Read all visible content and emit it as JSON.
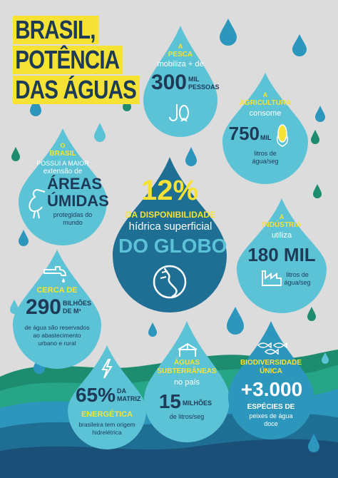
{
  "title": {
    "line1": "BRASIL,",
    "line2": "POTÊNCIA",
    "line3": "DAS ÁGUAS"
  },
  "colors": {
    "background": "#dcdcdc",
    "title_highlight": "#f5e234",
    "navy": "#1d3a57",
    "drop_light": "#5cc3d7",
    "drop_mid": "#2c96bd",
    "drop_dark": "#1e6f93",
    "accent_yellow": "#f5e234"
  },
  "pesca": {
    "label1": "A",
    "label2": "PESCA",
    "text": "mobiliza + de",
    "number": "300",
    "unit1": "MIL",
    "unit2": "PESSOAS",
    "icon": "fish-hook-icon"
  },
  "agricultura": {
    "label1": "A",
    "label2": "AGRICULTURA",
    "text": "consome",
    "number": "750",
    "unit": "MIL",
    "sub1": "litros de",
    "sub2": "água/seg",
    "icon": "corn-icon"
  },
  "areas": {
    "label1": "O",
    "label2": "BRASIL",
    "line1": "POSSUI A MAIOR",
    "line2": "extensão de",
    "line3": "ÁREAS",
    "line4": "ÚMIDAS",
    "line5": "protegidas do",
    "line6": "mundo",
    "icon": "heron-icon"
  },
  "globo": {
    "percent": "12%",
    "line1": "DA DISPONIBILIDADE",
    "line2": "hídrica superficial",
    "line3": "DO GLOBO",
    "icon": "globe-water-icon"
  },
  "industria": {
    "label1": "A",
    "label2": "INDÚSTRIA",
    "text": "utiliza",
    "number": "180 MIL",
    "sub1": "litros de",
    "sub2": "água/seg",
    "icon": "factory-icon"
  },
  "agua": {
    "label": "CERCA DE",
    "number": "290",
    "unit1": "BILHÕES",
    "unit2": "DE M³",
    "sub1": "de água são reservados",
    "sub2": "ao abastecimento",
    "sub3": "urbano e rural",
    "icon": "faucet-icon"
  },
  "energia": {
    "number": "65%",
    "unit1": "DA",
    "unit2": "MATRIZ",
    "label": "ENERGÉTICA",
    "sub1": "brasileira tem origem",
    "sub2": "hidrelétrica",
    "icon": "lightning-icon"
  },
  "subterraneas": {
    "line1": "ÁGUAS",
    "line2": "SUBTERRÂNEAS",
    "line3": "no país",
    "number": "15",
    "unit": "MILHÕES",
    "sub": "de litros/seg",
    "icon": "well-icon"
  },
  "biodiversidade": {
    "label1": "BIODIVERSIDADE",
    "label2": "ÚNICA",
    "number": "+3.000",
    "line1": "ESPÉCIES DE",
    "line2": "peixes de água",
    "line3": "doce",
    "icon": "fish-school-icon"
  }
}
